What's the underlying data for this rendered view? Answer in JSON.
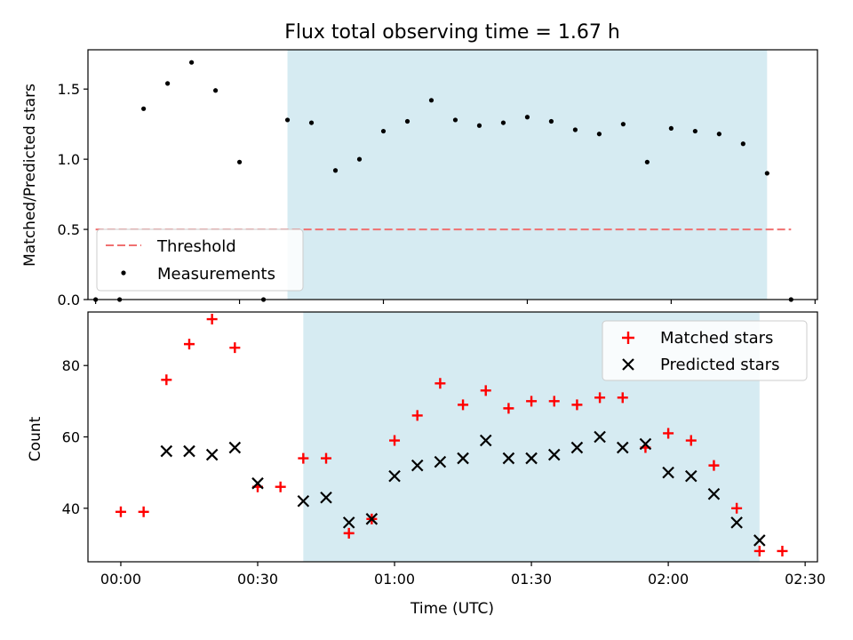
{
  "figure": {
    "title": "Flux total observing time = 1.67 h",
    "xlabel": "Time (UTC)"
  },
  "chart_data": [
    {
      "type": "scatter",
      "panel": "top",
      "ylabel": "Matched/Predicted stars",
      "xlim": [
        -1.6,
        150.5
      ],
      "ylim": [
        0,
        1.78
      ],
      "x_ticks": [
        {
          "v": 0,
          "label": ""
        },
        {
          "v": 30,
          "label": ""
        },
        {
          "v": 60,
          "label": ""
        },
        {
          "v": 90,
          "label": ""
        },
        {
          "v": 120,
          "label": ""
        },
        {
          "v": 150,
          "label": ""
        }
      ],
      "y_ticks": [
        {
          "v": 0,
          "label": "0.0"
        },
        {
          "v": 0.5,
          "label": "0.5"
        },
        {
          "v": 1.0,
          "label": "1.0"
        },
        {
          "v": 1.5,
          "label": "1.5"
        }
      ],
      "shaded_span": {
        "x0": 40,
        "x1": 140,
        "color": "#add8e6"
      },
      "threshold": {
        "name": "Threshold",
        "value": 0.5,
        "x0": 0,
        "x1": 145,
        "color": "#f07070"
      },
      "series": [
        {
          "name": "Measurements",
          "marker": "dot",
          "color": "#000000",
          "x": [
            0,
            5,
            10,
            15,
            20,
            25,
            30,
            35,
            40,
            45,
            50,
            55,
            60,
            65,
            70,
            75,
            80,
            85,
            90,
            95,
            100,
            105,
            110,
            115,
            120,
            125,
            130,
            135,
            140,
            145
          ],
          "y": [
            0,
            0,
            1.36,
            1.54,
            1.69,
            1.49,
            0.98,
            0,
            1.28,
            1.26,
            0.92,
            1.0,
            1.2,
            1.27,
            1.42,
            1.28,
            1.24,
            1.26,
            1.3,
            1.27,
            1.21,
            1.18,
            1.25,
            0.98,
            1.22,
            1.2,
            1.18,
            1.11,
            0.9,
            0
          ]
        }
      ],
      "legend": {
        "position": "lower-left",
        "entries": [
          "Threshold",
          "Measurements"
        ]
      }
    },
    {
      "type": "scatter",
      "panel": "bottom",
      "ylabel": "Count",
      "xlim": [
        -7.2,
        152.7
      ],
      "ylim": [
        25,
        95
      ],
      "x_ticks": [
        {
          "v": 0,
          "label": "00:00"
        },
        {
          "v": 30,
          "label": "00:30"
        },
        {
          "v": 60,
          "label": "01:00"
        },
        {
          "v": 90,
          "label": "01:30"
        },
        {
          "v": 120,
          "label": "02:00"
        },
        {
          "v": 150,
          "label": "02:30"
        }
      ],
      "y_ticks": [
        {
          "v": 40,
          "label": "40"
        },
        {
          "v": 60,
          "label": "60"
        },
        {
          "v": 80,
          "label": "80"
        }
      ],
      "shaded_span": {
        "x0": 40,
        "x1": 140,
        "color": "#add8e6"
      },
      "series": [
        {
          "name": "Matched stars",
          "marker": "plus",
          "color": "#ff0000",
          "x": [
            0,
            5,
            10,
            15,
            20,
            25,
            30,
            35,
            40,
            45,
            50,
            55,
            60,
            65,
            70,
            75,
            80,
            85,
            90,
            95,
            100,
            105,
            110,
            115,
            120,
            125,
            130,
            135,
            140,
            145
          ],
          "y": [
            39,
            39,
            76,
            86,
            93,
            85,
            46,
            46,
            54,
            54,
            33,
            37,
            59,
            66,
            75,
            69,
            73,
            68,
            70,
            70,
            69,
            71,
            71,
            57,
            61,
            59,
            52,
            40,
            28,
            28
          ]
        },
        {
          "name": "Predicted stars",
          "marker": "x",
          "color": "#000000",
          "x": [
            10,
            15,
            20,
            25,
            30,
            40,
            45,
            50,
            55,
            60,
            65,
            70,
            75,
            80,
            85,
            90,
            95,
            100,
            105,
            110,
            115,
            120,
            125,
            130,
            135,
            140
          ],
          "y": [
            56,
            56,
            55,
            57,
            47,
            42,
            43,
            36,
            37,
            49,
            52,
            53,
            54,
            59,
            54,
            54,
            55,
            57,
            60,
            57,
            58,
            50,
            49,
            44,
            36,
            31
          ]
        }
      ],
      "legend": {
        "position": "upper-right",
        "entries": [
          "Matched stars",
          "Predicted stars"
        ]
      }
    }
  ]
}
